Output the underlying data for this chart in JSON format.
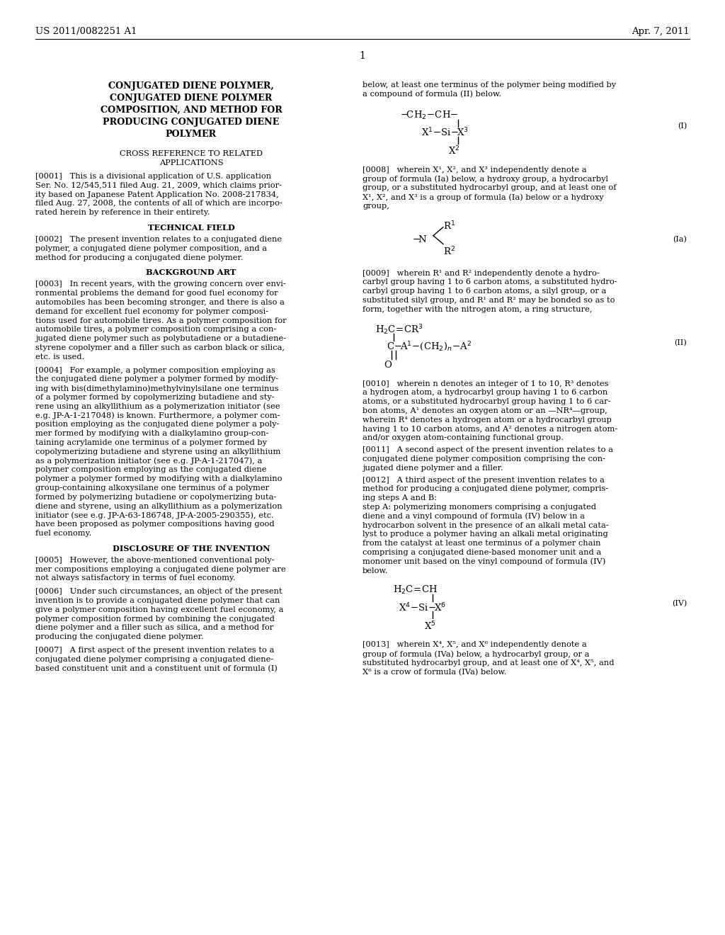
{
  "patent_number": "US 2011/0082251 A1",
  "patent_date": "Apr. 7, 2011",
  "page_number": "1",
  "background_color": "#ffffff",
  "title_lines": [
    "CONJUGATED DIENE POLYMER,",
    "CONJUGATED DIENE POLYMER",
    "COMPOSITION, AND METHOD FOR",
    "PRODUCING CONJUGATED DIENE",
    "POLYMER"
  ],
  "sec_crossref_1": "CROSS REFERENCE TO RELATED",
  "sec_crossref_2": "APPLICATIONS",
  "para0001_lines": [
    "[0001]   This is a divisional application of U.S. application",
    "Ser. No. 12/545,511 filed Aug. 21, 2009, which claims prior-",
    "ity based on Japanese Patent Application No. 2008-217834,",
    "filed Aug. 27, 2008, the contents of all of which are incorpo-",
    "rated herein by reference in their entirety."
  ],
  "sec_tech": "TECHNICAL FIELD",
  "para0002_lines": [
    "[0002]   The present invention relates to a conjugated diene",
    "polymer, a conjugated diene polymer composition, and a",
    "method for producing a conjugated diene polymer."
  ],
  "sec_bg": "BACKGROUND ART",
  "para0003_lines": [
    "[0003]   In recent years, with the growing concern over envi-",
    "ronmental problems the demand for good fuel economy for",
    "automobiles has been becoming stronger, and there is also a",
    "demand for excellent fuel economy for polymer composi-",
    "tions used for automobile tires. As a polymer composition for",
    "automobile tires, a polymer composition comprising a con-",
    "jugated diene polymer such as polybutadiene or a butadiene-",
    "styrene copolymer and a filler such as carbon black or silica,",
    "etc. is used."
  ],
  "para0004_lines": [
    "[0004]   For example, a polymer composition employing as",
    "the conjugated diene polymer a polymer formed by modify-",
    "ing with bis(dimethylamino)methylvinylsilane one terminus",
    "of a polymer formed by copolymerizing butadiene and sty-",
    "rene using an alkyllithium as a polymerization initiator (see",
    "e.g. JP-A-1-217048) is known. Furthermore, a polymer com-",
    "position employing as the conjugated diene polymer a poly-",
    "mer formed by modifying with a dialkylamino group-con-",
    "taining acrylamide one terminus of a polymer formed by",
    "copolymerizing butadiene and styrene using an alkyllithium",
    "as a polymerization initiator (see e.g. JP-A-1-217047), a",
    "polymer composition employing as the conjugated diene",
    "polymer a polymer formed by modifying with a dialkylamino",
    "group-containing alkoxysilane one terminus of a polymer",
    "formed by polymerizing butadiene or copolymerizing buta-",
    "diene and styrene, using an alkyllithium as a polymerization",
    "initiator (see e.g. JP-A-63-186748, JP-A-2005-290355), etc.",
    "have been proposed as polymer compositions having good",
    "fuel economy."
  ],
  "sec_disc": "DISCLOSURE OF THE INVENTION",
  "para0005_lines": [
    "[0005]   However, the above-mentioned conventional poly-",
    "mer compositions employing a conjugated diene polymer are",
    "not always satisfactory in terms of fuel economy."
  ],
  "para0006_lines": [
    "[0006]   Under such circumstances, an object of the present",
    "invention is to provide a conjugated diene polymer that can",
    "give a polymer composition having excellent fuel economy, a",
    "polymer composition formed by combining the conjugated",
    "diene polymer and a filler such as silica, and a method for",
    "producing the conjugated diene polymer."
  ],
  "para0007_lines": [
    "[0007]   A first aspect of the present invention relates to a",
    "conjugated diene polymer comprising a conjugated diene-",
    "based constituent unit and a constituent unit of formula (I)"
  ],
  "right_intro_lines": [
    "below, at least one terminus of the polymer being modified by",
    "a compound of formula (II) below."
  ],
  "para0008_lines": [
    "[0008]   wherein X¹, X², and X³ independently denote a",
    "group of formula (Ia) below, a hydroxy group, a hydrocarbyl",
    "group, or a substituted hydrocarbyl group, and at least one of",
    "X¹, X², and X³ is a group of formula (Ia) below or a hydroxy",
    "group,"
  ],
  "para0009_lines": [
    "[0009]   wherein R¹ and R² independently denote a hydro-",
    "carbyl group having 1 to 6 carbon atoms, a substituted hydro-",
    "carbyl group having 1 to 6 carbon atoms, a silyl group, or a",
    "substituted silyl group, and R¹ and R² may be bonded so as to",
    "form, together with the nitrogen atom, a ring structure,"
  ],
  "para0010_lines": [
    "[0010]   wherein n denotes an integer of 1 to 10, R³ denotes",
    "a hydrogen atom, a hydrocarbyl group having 1 to 6 carbon",
    "atoms, or a substituted hydrocarbyl group having 1 to 6 car-",
    "bon atoms, A¹ denotes an oxygen atom or an —NR⁴—group,",
    "wherein R⁴ denotes a hydrogen atom or a hydrocarbyl group",
    "having 1 to 10 carbon atoms, and A² denotes a nitrogen atom-",
    "and/or oxygen atom-containing functional group."
  ],
  "para0011_lines": [
    "[0011]   A second aspect of the present invention relates to a",
    "conjugated diene polymer composition comprising the con-",
    "jugated diene polymer and a filler."
  ],
  "para0012_lines": [
    "[0012]   A third aspect of the present invention relates to a",
    "method for producing a conjugated diene polymer, compris-",
    "ing steps A and B:"
  ],
  "para0012b_lines": [
    "step A: polymerizing monomers comprising a conjugated",
    "diene and a vinyl compound of formula (IV) below in a",
    "hydrocarbon solvent in the presence of an alkali metal cata-",
    "lyst to produce a polymer having an alkali metal originating",
    "from the catalyst at least one terminus of a polymer chain",
    "comprising a conjugated diene-based monomer unit and a",
    "monomer unit based on the vinyl compound of formula (IV)",
    "below."
  ],
  "para0013_lines": [
    "[0013]   wherein X⁴, X⁵, and X⁶ independently denote a",
    "group of formula (IVa) below, a hydrocarbyl group, or a",
    "substituted hydrocarbyl group, and at least one of X⁴, X⁵, and",
    "X⁶ is a crow of formula (IVa) below."
  ]
}
